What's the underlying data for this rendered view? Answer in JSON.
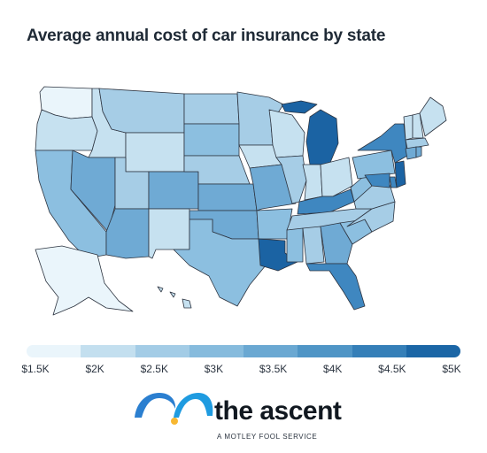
{
  "title": "Average annual cost of car insurance by state",
  "legend": {
    "ticks": [
      "$1.5K",
      "$2K",
      "$2.5K",
      "$3K",
      "$3.5K",
      "$4K",
      "$4.5K",
      "$5K"
    ],
    "colors": [
      "#eaf5fb",
      "#c3dfef",
      "#a3cce6",
      "#86bbdd",
      "#6aa8d2",
      "#4f95c6",
      "#357fb8",
      "#1b66a6"
    ]
  },
  "colors": {
    "state_border": "#2d3440",
    "level_0": "#eaf5fb",
    "level_1": "#c6e1f0",
    "level_2": "#a6cde6",
    "level_3": "#8cbfe0",
    "level_4": "#6faad4",
    "level_5": "#3f87c0",
    "level_6": "#1b63a3"
  },
  "states": [
    {
      "name": "washington",
      "level": 0
    },
    {
      "name": "oregon",
      "level": 1
    },
    {
      "name": "california",
      "level": 3
    },
    {
      "name": "idaho",
      "level": 1
    },
    {
      "name": "nevada",
      "level": 4
    },
    {
      "name": "montana",
      "level": 2
    },
    {
      "name": "wyoming",
      "level": 1
    },
    {
      "name": "utah",
      "level": 2
    },
    {
      "name": "arizona",
      "level": 4
    },
    {
      "name": "colorado",
      "level": 4
    },
    {
      "name": "new-mexico",
      "level": 1
    },
    {
      "name": "north-dakota",
      "level": 2
    },
    {
      "name": "south-dakota",
      "level": 3
    },
    {
      "name": "nebraska",
      "level": 2
    },
    {
      "name": "kansas",
      "level": 4
    },
    {
      "name": "oklahoma",
      "level": 4
    },
    {
      "name": "texas",
      "level": 3
    },
    {
      "name": "minnesota",
      "level": 2
    },
    {
      "name": "iowa",
      "level": 1
    },
    {
      "name": "missouri",
      "level": 4
    },
    {
      "name": "arkansas",
      "level": 3
    },
    {
      "name": "louisiana",
      "level": 6
    },
    {
      "name": "wisconsin",
      "level": 1
    },
    {
      "name": "illinois",
      "level": 2
    },
    {
      "name": "michigan",
      "level": 6
    },
    {
      "name": "indiana",
      "level": 1
    },
    {
      "name": "ohio",
      "level": 1
    },
    {
      "name": "kentucky",
      "level": 5
    },
    {
      "name": "tennessee",
      "level": 2
    },
    {
      "name": "mississippi",
      "level": 3
    },
    {
      "name": "alabama",
      "level": 2
    },
    {
      "name": "georgia",
      "level": 4
    },
    {
      "name": "florida",
      "level": 5
    },
    {
      "name": "south-carolina",
      "level": 3
    },
    {
      "name": "north-carolina",
      "level": 2
    },
    {
      "name": "virginia",
      "level": 2
    },
    {
      "name": "west-virginia",
      "level": 3
    },
    {
      "name": "pennsylvania",
      "level": 3
    },
    {
      "name": "new-york",
      "level": 5
    },
    {
      "name": "vermont",
      "level": 1
    },
    {
      "name": "new-hampshire",
      "level": 1
    },
    {
      "name": "maine",
      "level": 1
    },
    {
      "name": "massachusetts",
      "level": 2
    },
    {
      "name": "connecticut",
      "level": 4
    },
    {
      "name": "rhode-island",
      "level": 4
    },
    {
      "name": "new-jersey",
      "level": 6
    },
    {
      "name": "delaware",
      "level": 5
    },
    {
      "name": "maryland",
      "level": 5
    },
    {
      "name": "alaska",
      "level": 0
    },
    {
      "name": "hawaii",
      "level": 1
    }
  ],
  "brand": {
    "name": "the ascent",
    "tagline": "A MOTLEY FOOL SERVICE",
    "logo_colors": [
      "#2b7fd0",
      "#1f9be0",
      "#f7b731"
    ]
  }
}
